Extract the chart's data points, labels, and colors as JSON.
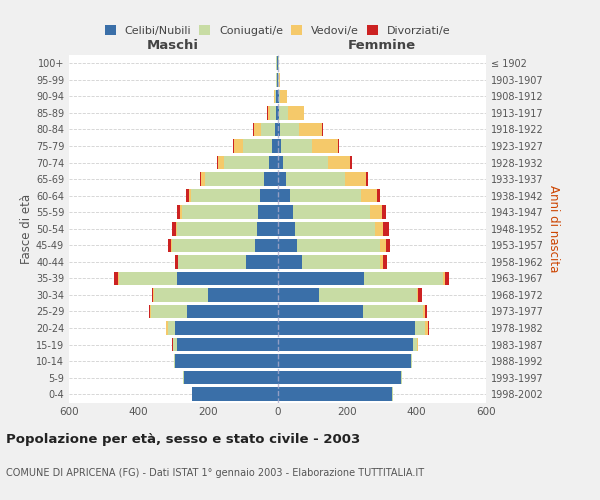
{
  "age_groups": [
    "0-4",
    "5-9",
    "10-14",
    "15-19",
    "20-24",
    "25-29",
    "30-34",
    "35-39",
    "40-44",
    "45-49",
    "50-54",
    "55-59",
    "60-64",
    "65-69",
    "70-74",
    "75-79",
    "80-84",
    "85-89",
    "90-94",
    "95-99",
    "100+"
  ],
  "birth_years": [
    "1998-2002",
    "1993-1997",
    "1988-1992",
    "1983-1987",
    "1978-1982",
    "1973-1977",
    "1968-1972",
    "1963-1967",
    "1958-1962",
    "1953-1957",
    "1948-1952",
    "1943-1947",
    "1938-1942",
    "1933-1937",
    "1928-1932",
    "1923-1927",
    "1918-1922",
    "1913-1917",
    "1908-1912",
    "1903-1907",
    "≤ 1902"
  ],
  "maschi": {
    "celibi": [
      245,
      270,
      295,
      290,
      295,
      260,
      200,
      290,
      90,
      65,
      60,
      55,
      50,
      40,
      25,
      15,
      8,
      5,
      3,
      2,
      2
    ],
    "coniugati": [
      2,
      2,
      2,
      10,
      20,
      105,
      155,
      165,
      195,
      240,
      230,
      220,
      200,
      170,
      130,
      85,
      40,
      18,
      5,
      2,
      1
    ],
    "vedovi": [
      0,
      0,
      0,
      2,
      5,
      2,
      2,
      5,
      2,
      2,
      3,
      5,
      5,
      10,
      15,
      25,
      20,
      5,
      2,
      0,
      0
    ],
    "divorziati": [
      0,
      0,
      0,
      2,
      2,
      3,
      5,
      10,
      8,
      8,
      10,
      8,
      8,
      3,
      3,
      2,
      2,
      2,
      0,
      0,
      0
    ]
  },
  "femmine": {
    "nubili": [
      330,
      355,
      385,
      390,
      395,
      245,
      120,
      250,
      70,
      55,
      50,
      45,
      35,
      25,
      15,
      10,
      8,
      5,
      3,
      2,
      2
    ],
    "coniugate": [
      3,
      3,
      3,
      10,
      30,
      175,
      280,
      225,
      225,
      240,
      230,
      220,
      205,
      170,
      130,
      90,
      55,
      25,
      5,
      2,
      1
    ],
    "vedove": [
      0,
      0,
      0,
      3,
      8,
      5,
      5,
      8,
      10,
      18,
      25,
      35,
      45,
      60,
      65,
      75,
      65,
      45,
      20,
      2,
      0
    ],
    "divorziate": [
      0,
      0,
      0,
      2,
      3,
      5,
      10,
      10,
      10,
      10,
      15,
      12,
      10,
      5,
      3,
      3,
      2,
      2,
      0,
      0,
      0
    ]
  },
  "colors": {
    "celibi_nubili": "#3a6fa8",
    "coniugati": "#c8dca4",
    "vedovi": "#f5c96a",
    "divorziati": "#cc2222"
  },
  "xlim": 600,
  "title": "Popolazione per età, sesso e stato civile - 2003",
  "subtitle": "COMUNE DI APRICENA (FG) - Dati ISTAT 1° gennaio 2003 - Elaborazione TUTTITALIA.IT",
  "ylabel_left": "Fasce di età",
  "ylabel_right": "Anni di nascita",
  "xlabel_left": "Maschi",
  "xlabel_right": "Femmine",
  "bg_color": "#f0f0f0",
  "plot_bg": "#ffffff",
  "grid_color": "#cccccc"
}
